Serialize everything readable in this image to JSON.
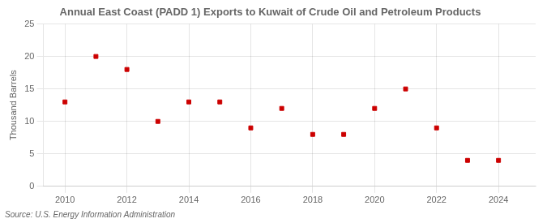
{
  "chart_data": {
    "type": "scatter",
    "title": "Annual East Coast (PADD 1) Exports to Kuwait of Crude Oil and Petroleum Products",
    "y_label": "Thousand Barrels",
    "annotation": "Source: U.S. Energy Information Administration",
    "x": [
      2010,
      2011,
      2012,
      2013,
      2014,
      2015,
      2016,
      2017,
      2018,
      2019,
      2020,
      2021,
      2022,
      2023,
      2024
    ],
    "values": [
      13,
      20,
      18,
      10,
      13,
      13,
      9,
      12,
      8,
      8,
      12,
      15,
      9,
      4,
      4
    ],
    "color": "#cc0000",
    "marker": "square",
    "xlim": [
      2009.3,
      2025.2
    ],
    "xticks": [
      2010,
      2012,
      2014,
      2016,
      2018,
      2020,
      2022,
      2024
    ],
    "ylim": [
      0,
      25
    ],
    "yticks": [
      0,
      5,
      10,
      15,
      20,
      25
    ],
    "grid": true
  }
}
